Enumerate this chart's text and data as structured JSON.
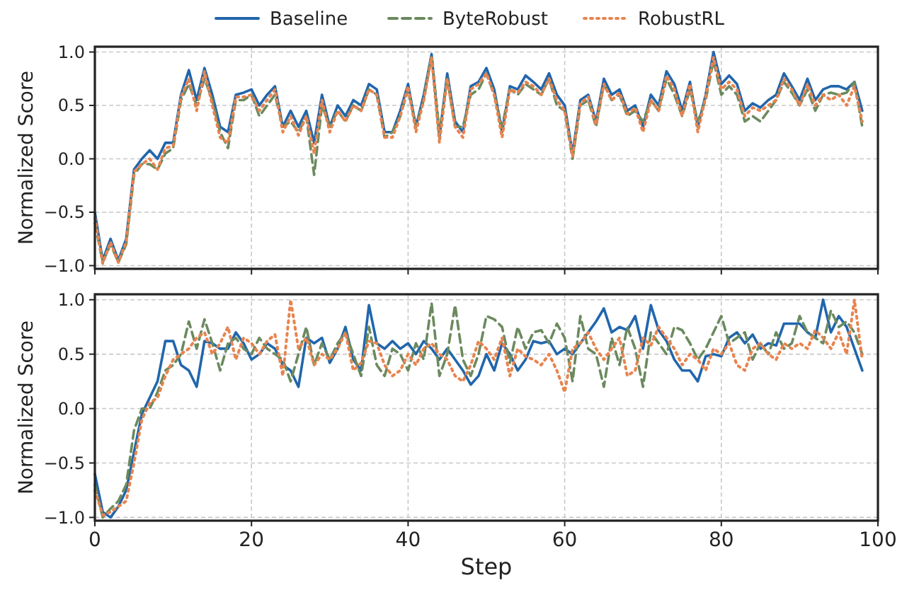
{
  "chart_data": [
    {
      "type": "line",
      "ylabel": "Normalized Score",
      "legend": "top",
      "grid": true,
      "tick_labels": "y",
      "xlim": [
        0,
        100
      ],
      "xticks": [
        0,
        20,
        40,
        60,
        80,
        100
      ],
      "ylim": [
        -1.03,
        1.05
      ],
      "yticks": [
        {
          "value": -1,
          "label": "−1.0"
        },
        {
          "value": -0.5,
          "label": "−0.5"
        },
        {
          "value": 0,
          "label": "0.0"
        },
        {
          "value": 0.5,
          "label": "0.5"
        },
        {
          "value": 1,
          "label": "1.0"
        }
      ],
      "x": [
        0,
        1,
        2,
        3,
        4,
        5,
        6,
        7,
        8,
        9,
        10,
        11,
        12,
        13,
        14,
        15,
        16,
        17,
        18,
        19,
        20,
        21,
        22,
        23,
        24,
        25,
        26,
        27,
        28,
        29,
        30,
        31,
        32,
        33,
        34,
        35,
        36,
        37,
        38,
        39,
        40,
        41,
        42,
        43,
        44,
        45,
        46,
        47,
        48,
        49,
        50,
        51,
        52,
        53,
        54,
        55,
        56,
        57,
        58,
        59,
        60,
        61,
        62,
        63,
        64,
        65,
        66,
        67,
        68,
        69,
        70,
        71,
        72,
        73,
        74,
        75,
        76,
        77,
        78,
        79,
        80,
        81,
        82,
        83,
        84,
        85,
        86,
        87,
        88,
        89,
        90,
        91,
        92,
        93,
        94,
        95,
        96,
        97,
        98
      ],
      "series": [
        {
          "name": "Baseline",
          "color": "#2166ac",
          "line_style": "solid",
          "values": [
            -0.5,
            -0.95,
            -0.75,
            -0.95,
            -0.75,
            -0.1,
            0,
            0.08,
            0,
            0.15,
            0.15,
            0.6,
            0.83,
            0.55,
            0.85,
            0.6,
            0.3,
            0.25,
            0.6,
            0.62,
            0.65,
            0.5,
            0.6,
            0.68,
            0.3,
            0.45,
            0.3,
            0.45,
            0.15,
            0.6,
            0.3,
            0.5,
            0.4,
            0.55,
            0.5,
            0.7,
            0.65,
            0.25,
            0.25,
            0.45,
            0.7,
            0.3,
            0.6,
            0.98,
            0.2,
            0.8,
            0.35,
            0.25,
            0.68,
            0.72,
            0.85,
            0.65,
            0.25,
            0.68,
            0.65,
            0.78,
            0.72,
            0.65,
            0.8,
            0.6,
            0.5,
            0.05,
            0.55,
            0.6,
            0.35,
            0.75,
            0.6,
            0.65,
            0.45,
            0.5,
            0.3,
            0.6,
            0.5,
            0.82,
            0.7,
            0.45,
            0.72,
            0.3,
            0.6,
            1.0,
            0.7,
            0.78,
            0.7,
            0.45,
            0.52,
            0.48,
            0.55,
            0.6,
            0.8,
            0.68,
            0.55,
            0.75,
            0.55,
            0.65,
            0.68,
            0.68,
            0.65,
            0.72,
            0.45
          ]
        },
        {
          "name": "ByteRobust",
          "color": "#6b8a5e",
          "line_style": "dashed",
          "values": [
            -0.6,
            -0.97,
            -0.8,
            -0.97,
            -0.8,
            -0.15,
            -0.05,
            -0.05,
            -0.1,
            0.05,
            0.1,
            0.55,
            0.7,
            0.5,
            0.75,
            0.55,
            0.25,
            0.1,
            0.55,
            0.55,
            0.6,
            0.4,
            0.5,
            0.6,
            0.3,
            0.35,
            0.25,
            0.4,
            -0.15,
            0.5,
            0.3,
            0.45,
            0.35,
            0.5,
            0.45,
            0.65,
            0.6,
            0.2,
            0.25,
            0.4,
            0.65,
            0.3,
            0.55,
            0.97,
            0.25,
            0.75,
            0.3,
            0.3,
            0.6,
            0.65,
            0.8,
            0.6,
            0.3,
            0.65,
            0.6,
            0.7,
            0.65,
            0.6,
            0.75,
            0.5,
            0.45,
            0.0,
            0.5,
            0.55,
            0.3,
            0.7,
            0.55,
            0.6,
            0.4,
            0.45,
            0.35,
            0.55,
            0.45,
            0.75,
            0.6,
            0.4,
            0.65,
            0.35,
            0.55,
            0.92,
            0.6,
            0.68,
            0.6,
            0.35,
            0.4,
            0.35,
            0.45,
            0.55,
            0.72,
            0.62,
            0.5,
            0.65,
            0.45,
            0.6,
            0.62,
            0.6,
            0.62,
            0.72,
            0.3
          ]
        },
        {
          "name": "RobustRL",
          "color": "#e8844f",
          "line_style": "dotted",
          "values": [
            -0.55,
            -0.98,
            -0.78,
            -0.97,
            -0.78,
            -0.12,
            -0.05,
            0.0,
            -0.1,
            0.1,
            0.12,
            0.58,
            0.75,
            0.45,
            0.82,
            0.5,
            0.2,
            0.15,
            0.58,
            0.58,
            0.6,
            0.45,
            0.55,
            0.65,
            0.25,
            0.4,
            0.22,
            0.4,
            0.05,
            0.55,
            0.25,
            0.45,
            0.35,
            0.5,
            0.45,
            0.65,
            0.6,
            0.2,
            0.2,
            0.4,
            0.68,
            0.25,
            0.55,
            0.95,
            0.15,
            0.75,
            0.3,
            0.2,
            0.65,
            0.7,
            0.8,
            0.6,
            0.2,
            0.65,
            0.62,
            0.72,
            0.68,
            0.6,
            0.75,
            0.55,
            0.45,
            0.02,
            0.52,
            0.58,
            0.32,
            0.7,
            0.55,
            0.62,
            0.42,
            0.48,
            0.25,
            0.55,
            0.45,
            0.78,
            0.65,
            0.4,
            0.7,
            0.25,
            0.58,
            0.95,
            0.65,
            0.72,
            0.65,
            0.4,
            0.48,
            0.45,
            0.5,
            0.55,
            0.75,
            0.65,
            0.5,
            0.7,
            0.5,
            0.6,
            0.55,
            0.6,
            0.5,
            0.68,
            0.35
          ]
        }
      ]
    },
    {
      "type": "line",
      "ylabel": "Normalized Score",
      "xlabel": "Step",
      "grid": true,
      "xlim": [
        0,
        100
      ],
      "xticks": [
        0,
        20,
        40,
        60,
        80,
        100
      ],
      "ylim": [
        -1.03,
        1.05
      ],
      "yticks": [
        {
          "value": -1,
          "label": "−1.0"
        },
        {
          "value": -0.5,
          "label": "−0.5"
        },
        {
          "value": 0,
          "label": "0.0"
        },
        {
          "value": 0.5,
          "label": "0.5"
        },
        {
          "value": 1,
          "label": "1.0"
        }
      ],
      "x": [
        0,
        1,
        2,
        3,
        4,
        5,
        6,
        7,
        8,
        9,
        10,
        11,
        12,
        13,
        14,
        15,
        16,
        17,
        18,
        19,
        20,
        21,
        22,
        23,
        24,
        25,
        26,
        27,
        28,
        29,
        30,
        31,
        32,
        33,
        34,
        35,
        36,
        37,
        38,
        39,
        40,
        41,
        42,
        43,
        44,
        45,
        46,
        47,
        48,
        49,
        50,
        51,
        52,
        53,
        54,
        55,
        56,
        57,
        58,
        59,
        60,
        61,
        62,
        63,
        64,
        65,
        66,
        67,
        68,
        69,
        70,
        71,
        72,
        73,
        74,
        75,
        76,
        77,
        78,
        79,
        80,
        81,
        82,
        83,
        84,
        85,
        86,
        87,
        88,
        89,
        90,
        91,
        92,
        93,
        94,
        95,
        96,
        97,
        98
      ],
      "series": [
        {
          "color": "#2166ac",
          "line_style": "solid",
          "values": [
            -0.6,
            -0.95,
            -1.0,
            -0.9,
            -0.75,
            -0.4,
            -0.05,
            0.1,
            0.25,
            0.62,
            0.62,
            0.4,
            0.35,
            0.2,
            0.62,
            0.6,
            0.55,
            0.55,
            0.7,
            0.6,
            0.45,
            0.5,
            0.6,
            0.55,
            0.4,
            0.35,
            0.2,
            0.65,
            0.6,
            0.65,
            0.42,
            0.55,
            0.75,
            0.45,
            0.35,
            0.95,
            0.6,
            0.55,
            0.62,
            0.55,
            0.6,
            0.5,
            0.62,
            0.55,
            0.45,
            0.55,
            0.45,
            0.35,
            0.22,
            0.3,
            0.5,
            0.35,
            0.6,
            0.5,
            0.35,
            0.45,
            0.62,
            0.6,
            0.62,
            0.5,
            0.55,
            0.5,
            0.6,
            0.7,
            0.8,
            0.92,
            0.7,
            0.75,
            0.72,
            0.85,
            0.55,
            0.95,
            0.72,
            0.62,
            0.45,
            0.35,
            0.35,
            0.25,
            0.48,
            0.5,
            0.48,
            0.65,
            0.7,
            0.6,
            0.68,
            0.55,
            0.6,
            0.58,
            0.78,
            0.78,
            0.78,
            0.7,
            0.65,
            1.0,
            0.7,
            0.85,
            0.75,
            0.55,
            0.35
          ]
        },
        {
          "color": "#6b8a5e",
          "line_style": "dashed",
          "values": [
            -0.7,
            -1.0,
            -0.92,
            -0.85,
            -0.7,
            -0.2,
            0.0,
            0.0,
            0.15,
            0.35,
            0.4,
            0.5,
            0.8,
            0.55,
            0.82,
            0.6,
            0.35,
            0.6,
            0.65,
            0.55,
            0.5,
            0.65,
            0.55,
            0.5,
            0.45,
            0.25,
            0.5,
            0.75,
            0.4,
            0.6,
            0.45,
            0.6,
            0.7,
            0.5,
            0.3,
            0.75,
            0.4,
            0.3,
            0.55,
            0.5,
            0.35,
            0.6,
            0.45,
            0.97,
            0.3,
            0.5,
            0.95,
            0.45,
            0.3,
            0.5,
            0.85,
            0.82,
            0.75,
            0.42,
            0.75,
            0.55,
            0.7,
            0.72,
            0.6,
            0.78,
            0.65,
            0.25,
            0.85,
            0.55,
            0.5,
            0.2,
            0.65,
            0.4,
            0.75,
            0.55,
            0.2,
            0.7,
            0.6,
            0.5,
            0.75,
            0.72,
            0.6,
            0.45,
            0.55,
            0.7,
            0.85,
            0.6,
            0.65,
            0.7,
            0.45,
            0.6,
            0.5,
            0.7,
            0.55,
            0.6,
            0.85,
            0.7,
            0.65,
            0.6,
            0.9,
            0.75,
            0.8,
            0.7,
            0.5
          ]
        },
        {
          "color": "#e8844f",
          "line_style": "dotted",
          "values": [
            -0.75,
            -0.98,
            -0.95,
            -0.9,
            -0.85,
            -0.5,
            -0.1,
            0.05,
            0.1,
            0.3,
            0.45,
            0.5,
            0.55,
            0.65,
            0.7,
            0.5,
            0.6,
            0.75,
            0.45,
            0.65,
            0.6,
            0.5,
            0.62,
            0.68,
            0.3,
            1.0,
            0.55,
            0.65,
            0.4,
            0.5,
            0.45,
            0.55,
            0.7,
            0.35,
            0.42,
            0.62,
            0.6,
            0.4,
            0.3,
            0.35,
            0.5,
            0.4,
            0.55,
            0.6,
            0.5,
            0.45,
            0.3,
            0.25,
            0.4,
            0.62,
            0.55,
            0.45,
            0.65,
            0.3,
            0.55,
            0.48,
            0.45,
            0.4,
            0.5,
            0.35,
            0.15,
            0.55,
            0.6,
            0.7,
            0.55,
            0.45,
            0.55,
            0.65,
            0.3,
            0.35,
            0.65,
            0.58,
            0.75,
            0.65,
            0.55,
            0.4,
            0.5,
            0.45,
            0.35,
            0.55,
            0.5,
            0.6,
            0.4,
            0.35,
            0.55,
            0.6,
            0.5,
            0.45,
            0.6,
            0.55,
            0.6,
            0.55,
            0.72,
            0.65,
            0.55,
            0.7,
            0.5,
            1.0,
            0.45
          ]
        }
      ]
    }
  ]
}
